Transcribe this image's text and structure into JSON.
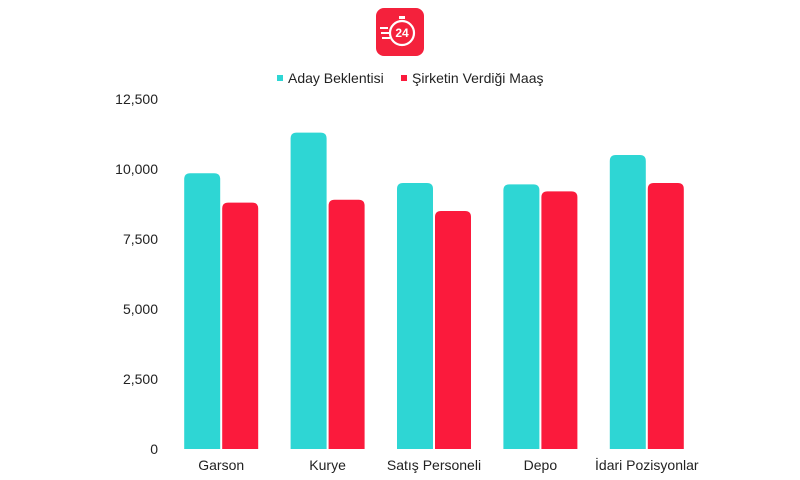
{
  "logo": {
    "text": "24",
    "icon": "stopwatch-24-icon",
    "color": "#f4213c"
  },
  "chart_data": {
    "type": "bar",
    "categories": [
      "Garson",
      "Kurye",
      "Satış Personeli",
      "Depo",
      "İdari Pozisyonlar"
    ],
    "series": [
      {
        "name": "Aday Beklentisi",
        "color": "#2ed6d4",
        "values": [
          9850,
          11300,
          9500,
          9450,
          10500
        ]
      },
      {
        "name": "Şirketin Verdiği Maaş",
        "color": "#fb1a3c",
        "values": [
          8800,
          8900,
          8500,
          9200,
          9500
        ]
      }
    ],
    "yticks": [
      "0",
      "2,500",
      "5,000",
      "7,500",
      "10,000",
      "12,500"
    ],
    "ylim": [
      0,
      12500
    ],
    "grid": false,
    "legend": "top-center"
  }
}
